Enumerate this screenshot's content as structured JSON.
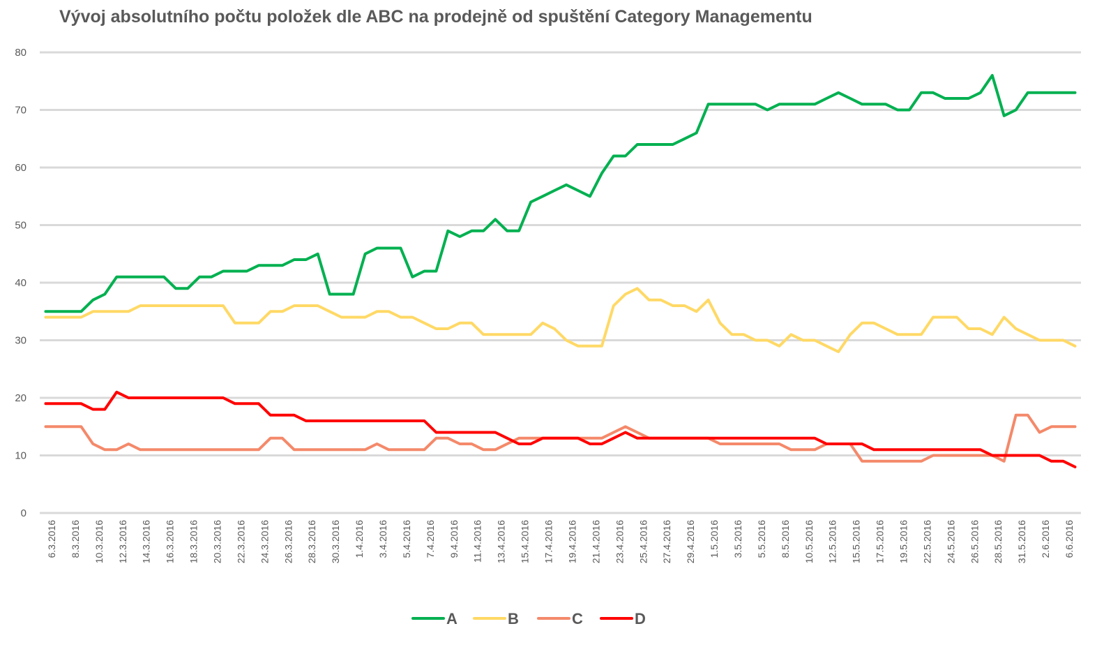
{
  "chart_data": {
    "type": "line",
    "title": "Vývoj absolutního počtu položek dle ABC na prodejně od spuštění Category Managementu",
    "xlabel": "",
    "ylabel": "",
    "ylim": [
      0,
      80
    ],
    "yticks": [
      0,
      10,
      20,
      30,
      40,
      50,
      60,
      70,
      80
    ],
    "grid": true,
    "legend": "bottom-center",
    "x_tick_labels": [
      "6.3.2016",
      "8.3.2016",
      "10.3.2016",
      "12.3.2016",
      "14.3.2016",
      "16.3.2016",
      "18.3.2016",
      "20.3.2016",
      "22.3.2016",
      "24.3.2016",
      "26.3.2016",
      "28.3.2016",
      "30.3.2016",
      "1.4.2016",
      "3.4.2016",
      "5.4.2016",
      "7.4.2016",
      "9.4.2016",
      "11.4.2016",
      "13.4.2016",
      "15.4.2016",
      "17.4.2016",
      "19.4.2016",
      "21.4.2016",
      "23.4.2016",
      "25.4.2016",
      "27.4.2016",
      "29.4.2016",
      "1.5.2016",
      "3.5.2016",
      "5.5.2016",
      "8.5.2016",
      "10.5.2016",
      "12.5.2016",
      "15.5.2016",
      "17.5.2016",
      "19.5.2016",
      "22.5.2016",
      "24.5.2016",
      "26.5.2016",
      "28.5.2016",
      "31.5.2016",
      "2.6.2016",
      "6.6.2016"
    ],
    "series": [
      {
        "name": "A",
        "color": "#00b050",
        "values": [
          35,
          35,
          35,
          35,
          37,
          38,
          41,
          41,
          41,
          41,
          41,
          39,
          39,
          41,
          41,
          42,
          42,
          42,
          43,
          43,
          43,
          44,
          44,
          45,
          38,
          38,
          38,
          45,
          46,
          46,
          46,
          41,
          42,
          42,
          49,
          48,
          49,
          49,
          51,
          49,
          49,
          54,
          55,
          56,
          57,
          56,
          55,
          59,
          62,
          62,
          64,
          64,
          64,
          64,
          65,
          66,
          71,
          71,
          71,
          71,
          71,
          70,
          71,
          71,
          71,
          71,
          72,
          73,
          72,
          71,
          71,
          71,
          70,
          70,
          73,
          73,
          72,
          72,
          72,
          73,
          76,
          69,
          70,
          73,
          73,
          73,
          73,
          73
        ]
      },
      {
        "name": "B",
        "color": "#ffd966",
        "values": [
          34,
          34,
          34,
          34,
          35,
          35,
          35,
          35,
          36,
          36,
          36,
          36,
          36,
          36,
          36,
          36,
          33,
          33,
          33,
          35,
          35,
          36,
          36,
          36,
          35,
          34,
          34,
          34,
          35,
          35,
          34,
          34,
          33,
          32,
          32,
          33,
          33,
          31,
          31,
          31,
          31,
          31,
          33,
          32,
          30,
          29,
          29,
          29,
          36,
          38,
          39,
          37,
          37,
          36,
          36,
          35,
          37,
          33,
          31,
          31,
          30,
          30,
          29,
          31,
          30,
          30,
          29,
          28,
          31,
          33,
          33,
          32,
          31,
          31,
          31,
          34,
          34,
          34,
          32,
          32,
          31,
          34,
          32,
          31,
          30,
          30,
          30,
          29
        ]
      },
      {
        "name": "C",
        "color": "#f4896a",
        "values": [
          15,
          15,
          15,
          15,
          12,
          11,
          11,
          12,
          11,
          11,
          11,
          11,
          11,
          11,
          11,
          11,
          11,
          11,
          11,
          13,
          13,
          11,
          11,
          11,
          11,
          11,
          11,
          11,
          12,
          11,
          11,
          11,
          11,
          13,
          13,
          12,
          12,
          11,
          11,
          12,
          13,
          13,
          13,
          13,
          13,
          13,
          13,
          13,
          14,
          15,
          14,
          13,
          13,
          13,
          13,
          13,
          13,
          12,
          12,
          12,
          12,
          12,
          12,
          11,
          11,
          11,
          12,
          12,
          12,
          9,
          9,
          9,
          9,
          9,
          9,
          10,
          10,
          10,
          10,
          10,
          10,
          9,
          17,
          17,
          14,
          15,
          15,
          15
        ]
      },
      {
        "name": "D",
        "color": "#ff0000",
        "values": [
          19,
          19,
          19,
          19,
          18,
          18,
          21,
          20,
          20,
          20,
          20,
          20,
          20,
          20,
          20,
          20,
          19,
          19,
          19,
          17,
          17,
          17,
          16,
          16,
          16,
          16,
          16,
          16,
          16,
          16,
          16,
          16,
          16,
          14,
          14,
          14,
          14,
          14,
          14,
          13,
          12,
          12,
          13,
          13,
          13,
          13,
          12,
          12,
          13,
          14,
          13,
          13,
          13,
          13,
          13,
          13,
          13,
          13,
          13,
          13,
          13,
          13,
          13,
          13,
          13,
          13,
          12,
          12,
          12,
          12,
          11,
          11,
          11,
          11,
          11,
          11,
          11,
          11,
          11,
          11,
          10,
          10,
          10,
          10,
          10,
          9,
          9,
          8
        ]
      }
    ]
  }
}
